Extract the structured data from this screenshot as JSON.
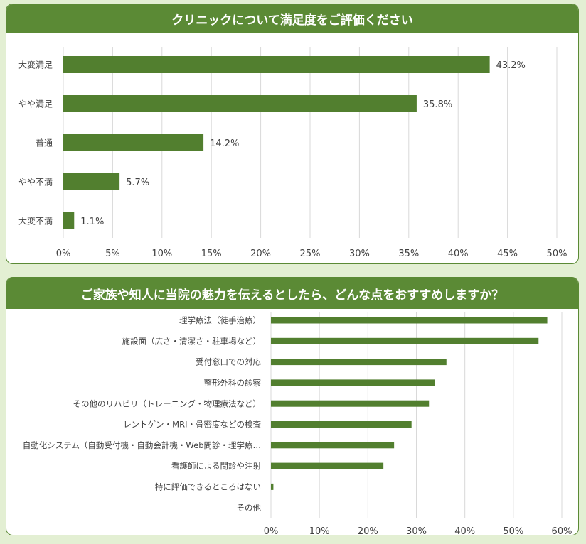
{
  "colors": {
    "accent": "#5b8a35",
    "bar": "#527f2f",
    "background": "#e3efd3",
    "grid": "#d9d9d9"
  },
  "chart_data": [
    {
      "type": "bar",
      "orientation": "horizontal",
      "title": "クリニックについて満足度をご評価ください",
      "categories": [
        "大変満足",
        "やや満足",
        "普通",
        "やや不満",
        "大変不満"
      ],
      "values": [
        43.2,
        35.8,
        14.2,
        5.7,
        1.1
      ],
      "data_labels": [
        "43.2%",
        "35.8%",
        "14.2%",
        "5.7%",
        "1.1%"
      ],
      "xlim": [
        0,
        50
      ],
      "x_ticks": [
        "0%",
        "5%",
        "10%",
        "15%",
        "20%",
        "25%",
        "30%",
        "35%",
        "40%",
        "45%",
        "50%"
      ],
      "xlabel": "",
      "ylabel": "",
      "grid": true
    },
    {
      "type": "bar",
      "orientation": "horizontal",
      "title": "ご家族や知人に当院の魅力を伝えるとしたら、どんな点をおすすめしますか？",
      "categories": [
        "理学療法（徒手治療）",
        "施設面（広さ・清潔さ・駐車場など）",
        "受付窓口での対応",
        "整形外科の診察",
        "その他のリハビリ（トレーニング・物理療法など）",
        "レントゲン・MRI・骨密度などの検査",
        "自動化システム（自動受付機・自動会計機・Web問診・理学療…",
        "看護師による問診や注射",
        "特に評価できるところはない",
        "その他"
      ],
      "values": [
        57,
        55.2,
        36.2,
        33.8,
        32.6,
        29,
        25.4,
        23.2,
        0.5,
        0
      ],
      "xlim": [
        0,
        60
      ],
      "x_ticks": [
        "0%",
        "10%",
        "20%",
        "30%",
        "40%",
        "50%",
        "60%"
      ],
      "xlabel": "",
      "ylabel": "",
      "grid": true
    }
  ]
}
